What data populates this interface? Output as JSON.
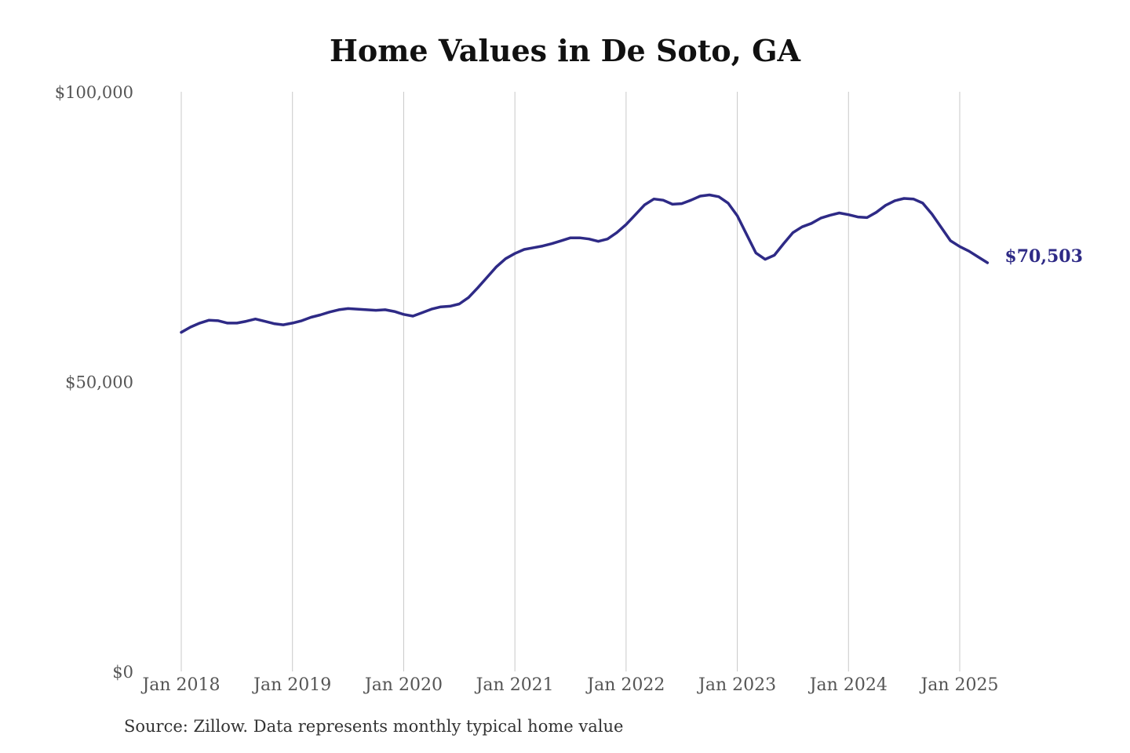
{
  "chart_data": {
    "type": "line",
    "title": "Home Values in De Soto, GA",
    "xlabel": "",
    "ylabel": "",
    "x_ticks": [
      "Jan 2018",
      "Jan 2019",
      "Jan 2020",
      "Jan 2021",
      "Jan 2022",
      "Jan 2023",
      "Jan 2024",
      "Jan 2025"
    ],
    "y_ticks": [
      "$0",
      "$50,000",
      "$100,000"
    ],
    "y_tick_values": [
      0,
      50000,
      100000
    ],
    "ylim": [
      0,
      100000
    ],
    "xlim": [
      "2018-01",
      "2025-03"
    ],
    "grid": "vertical",
    "series": [
      {
        "color": "#2e2a86",
        "end_label": "$70,503",
        "points": [
          [
            "2018-01",
            58500
          ],
          [
            "2018-02",
            59400
          ],
          [
            "2018-03",
            60100
          ],
          [
            "2018-04",
            60600
          ],
          [
            "2018-05",
            60500
          ],
          [
            "2018-06",
            60100
          ],
          [
            "2018-07",
            60100
          ],
          [
            "2018-08",
            60400
          ],
          [
            "2018-09",
            60800
          ],
          [
            "2018-10",
            60400
          ],
          [
            "2018-11",
            60000
          ],
          [
            "2018-12",
            59800
          ],
          [
            "2019-01",
            60100
          ],
          [
            "2019-02",
            60500
          ],
          [
            "2019-03",
            61100
          ],
          [
            "2019-04",
            61500
          ],
          [
            "2019-05",
            62000
          ],
          [
            "2019-06",
            62400
          ],
          [
            "2019-07",
            62600
          ],
          [
            "2019-08",
            62500
          ],
          [
            "2019-09",
            62400
          ],
          [
            "2019-10",
            62300
          ],
          [
            "2019-11",
            62400
          ],
          [
            "2019-12",
            62100
          ],
          [
            "2020-01",
            61600
          ],
          [
            "2020-02",
            61300
          ],
          [
            "2020-03",
            61900
          ],
          [
            "2020-04",
            62500
          ],
          [
            "2020-05",
            62900
          ],
          [
            "2020-06",
            63000
          ],
          [
            "2020-07",
            63400
          ],
          [
            "2020-08",
            64500
          ],
          [
            "2020-09",
            66200
          ],
          [
            "2020-10",
            68000
          ],
          [
            "2020-11",
            69800
          ],
          [
            "2020-12",
            71200
          ],
          [
            "2021-01",
            72100
          ],
          [
            "2021-02",
            72800
          ],
          [
            "2021-03",
            73100
          ],
          [
            "2021-04",
            73400
          ],
          [
            "2021-05",
            73800
          ],
          [
            "2021-06",
            74300
          ],
          [
            "2021-07",
            74800
          ],
          [
            "2021-08",
            74800
          ],
          [
            "2021-09",
            74600
          ],
          [
            "2021-10",
            74200
          ],
          [
            "2021-11",
            74600
          ],
          [
            "2021-12",
            75700
          ],
          [
            "2022-01",
            77100
          ],
          [
            "2022-02",
            78800
          ],
          [
            "2022-03",
            80500
          ],
          [
            "2022-04",
            81500
          ],
          [
            "2022-05",
            81300
          ],
          [
            "2022-06",
            80600
          ],
          [
            "2022-07",
            80700
          ],
          [
            "2022-08",
            81300
          ],
          [
            "2022-09",
            82000
          ],
          [
            "2022-10",
            82200
          ],
          [
            "2022-11",
            81900
          ],
          [
            "2022-12",
            80800
          ],
          [
            "2023-01",
            78600
          ],
          [
            "2023-02",
            75400
          ],
          [
            "2023-03",
            72200
          ],
          [
            "2023-04",
            71100
          ],
          [
            "2023-05",
            71800
          ],
          [
            "2023-06",
            73800
          ],
          [
            "2023-07",
            75700
          ],
          [
            "2023-08",
            76700
          ],
          [
            "2023-09",
            77300
          ],
          [
            "2023-10",
            78200
          ],
          [
            "2023-11",
            78700
          ],
          [
            "2023-12",
            79100
          ],
          [
            "2024-01",
            78800
          ],
          [
            "2024-02",
            78400
          ],
          [
            "2024-03",
            78300
          ],
          [
            "2024-04",
            79200
          ],
          [
            "2024-05",
            80400
          ],
          [
            "2024-06",
            81200
          ],
          [
            "2024-07",
            81600
          ],
          [
            "2024-08",
            81500
          ],
          [
            "2024-09",
            80800
          ],
          [
            "2024-10",
            78900
          ],
          [
            "2024-11",
            76600
          ],
          [
            "2024-12",
            74300
          ],
          [
            "2025-01",
            73300
          ],
          [
            "2025-02",
            72500
          ],
          [
            "2025-03",
            71500
          ],
          [
            "2025-04",
            70503
          ]
        ]
      }
    ]
  },
  "source_note": "Source: Zillow. Data represents monthly typical home value"
}
